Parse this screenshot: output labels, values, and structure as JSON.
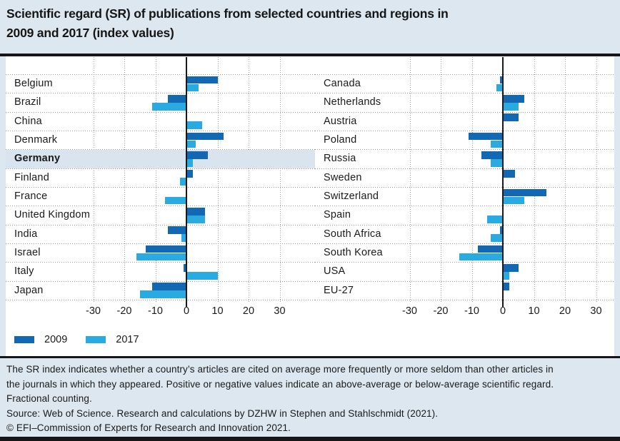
{
  "title_lines": [
    "Scientific regard (SR) of publications from selected countries and regions in",
    "2009 and 2017 (index values)"
  ],
  "colors": {
    "series_2009": "#1268b3",
    "series_2017": "#29abe2",
    "page_background": "#dce7ef",
    "highlight_row_background": "#d9e4ee",
    "rule_black": "#161616"
  },
  "legend": {
    "items": [
      {
        "label": "2009",
        "color": "#1268b3"
      },
      {
        "label": "2017",
        "color": "#29abe2"
      }
    ]
  },
  "chart_data": {
    "type": "bar",
    "orientation": "horizontal",
    "title": "Scientific regard (SR) of publications from selected countries and regions in 2009 and 2017 (index values)",
    "xlabel": "",
    "ylabel": "",
    "xlim": [
      -35,
      35
    ],
    "xticks": [
      -30,
      -20,
      -10,
      0,
      10,
      20,
      30
    ],
    "grid": "dotted vertical gridlines every 10, solid zero line",
    "legend_position": "bottom-left",
    "series_names": [
      "2009",
      "2017"
    ],
    "panels": [
      {
        "highlight_category": "Germany",
        "categories": [
          "Belgium",
          "Brazil",
          "China",
          "Denmark",
          "Germany",
          "Finland",
          "France",
          "United Kingdom",
          "India",
          "Israel",
          "Italy",
          "Japan"
        ],
        "series": [
          {
            "name": "2009",
            "values": [
              10,
              -6,
              0,
              12,
              7,
              2,
              0,
              6,
              -6,
              -13,
              -1,
              -11
            ]
          },
          {
            "name": "2017",
            "values": [
              4,
              -11,
              5,
              3,
              2,
              -2,
              -7,
              6,
              -1.5,
              -16,
              10,
              -15
            ]
          }
        ]
      },
      {
        "highlight_category": "",
        "categories": [
          "Canada",
          "Netherlands",
          "Austria",
          "Poland",
          "Russia",
          "Sweden",
          "Switzerland",
          "Spain",
          "South Africa",
          "South Korea",
          "USA",
          "EU-27"
        ],
        "series": [
          {
            "name": "2009",
            "values": [
              -1,
              7,
              5,
              -11,
              -7,
              4,
              14,
              0,
              -1,
              -8,
              5,
              2
            ]
          },
          {
            "name": "2017",
            "values": [
              -2,
              5,
              0,
              -4,
              -4,
              0,
              7,
              -5,
              -4,
              -14,
              2,
              0
            ]
          }
        ]
      }
    ]
  },
  "footer": {
    "lines": [
      "The SR index indicates whether a country’s articles are cited on average more frequently or more seldom than other articles in",
      "the journals in which they appeared. Positive or negative values indicate an above-average or below-average scientific regard.",
      "Fractional counting.",
      "Source: Web of Science. Research and calculations by DZHW in Stephen and Stahlschmidt (2021).",
      "© EFI–Commission of Experts for Research and Innovation 2021."
    ]
  }
}
